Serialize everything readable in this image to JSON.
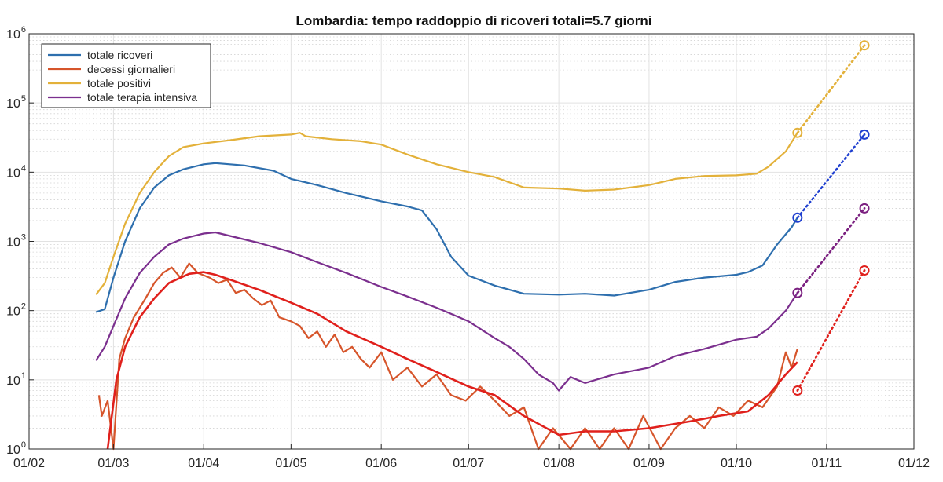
{
  "chart_data": {
    "type": "line",
    "title": "Lombardia: tempo raddoppio di ricoveri totali=5.7 giorni",
    "xlabel": "",
    "ylabel": "",
    "y_scale": "log",
    "ylim": [
      1,
      1000000
    ],
    "x_range": [
      "2020-02-01",
      "2020-12-01"
    ],
    "x_ticks": [
      "01/02",
      "01/03",
      "01/04",
      "01/05",
      "01/06",
      "01/07",
      "01/08",
      "01/09",
      "01/10",
      "01/11",
      "01/12"
    ],
    "y_ticks": [
      {
        "base": "10",
        "exp": "0"
      },
      {
        "base": "10",
        "exp": "1"
      },
      {
        "base": "10",
        "exp": "2"
      },
      {
        "base": "10",
        "exp": "3"
      },
      {
        "base": "10",
        "exp": "4"
      },
      {
        "base": "10",
        "exp": "5"
      },
      {
        "base": "10",
        "exp": "6"
      }
    ],
    "grid": true,
    "minor_grid": true,
    "legend_position": "top-left",
    "series": [
      {
        "name": "totale ricoveri",
        "color": "#2e6fae",
        "points": [
          [
            "2020-02-24",
            95
          ],
          [
            "2020-02-27",
            105
          ],
          [
            "2020-03-01",
            300
          ],
          [
            "2020-03-05",
            1000
          ],
          [
            "2020-03-10",
            3000
          ],
          [
            "2020-03-15",
            6000
          ],
          [
            "2020-03-20",
            9000
          ],
          [
            "2020-03-25",
            11000
          ],
          [
            "2020-04-01",
            13000
          ],
          [
            "2020-04-05",
            13500
          ],
          [
            "2020-04-15",
            12500
          ],
          [
            "2020-04-25",
            10500
          ],
          [
            "2020-05-01",
            8000
          ],
          [
            "2020-05-10",
            6500
          ],
          [
            "2020-05-20",
            5000
          ],
          [
            "2020-06-01",
            3800
          ],
          [
            "2020-06-10",
            3200
          ],
          [
            "2020-06-15",
            2800
          ],
          [
            "2020-06-20",
            1500
          ],
          [
            "2020-06-25",
            600
          ],
          [
            "2020-07-01",
            320
          ],
          [
            "2020-07-10",
            230
          ],
          [
            "2020-07-20",
            175
          ],
          [
            "2020-08-01",
            170
          ],
          [
            "2020-08-10",
            175
          ],
          [
            "2020-08-20",
            165
          ],
          [
            "2020-09-01",
            200
          ],
          [
            "2020-09-10",
            260
          ],
          [
            "2020-09-20",
            300
          ],
          [
            "2020-10-01",
            330
          ],
          [
            "2020-10-05",
            360
          ],
          [
            "2020-10-10",
            450
          ],
          [
            "2020-10-15",
            900
          ],
          [
            "2020-10-20",
            1600
          ],
          [
            "2020-10-22",
            2200
          ]
        ],
        "projection": {
          "start": [
            "2020-10-22",
            2200
          ],
          "end": [
            "2020-11-14",
            35000
          ]
        }
      },
      {
        "name": "decessi giornalieri",
        "color": "#d6552b",
        "smoothed_color": "#e0201c",
        "points": [
          [
            "2020-02-25",
            6
          ],
          [
            "2020-02-26",
            3
          ],
          [
            "2020-02-28",
            5
          ],
          [
            "2020-03-01",
            1
          ],
          [
            "2020-03-03",
            20
          ],
          [
            "2020-03-05",
            40
          ],
          [
            "2020-03-08",
            80
          ],
          [
            "2020-03-12",
            150
          ],
          [
            "2020-03-15",
            250
          ],
          [
            "2020-03-18",
            350
          ],
          [
            "2020-03-21",
            420
          ],
          [
            "2020-03-24",
            300
          ],
          [
            "2020-03-27",
            480
          ],
          [
            "2020-03-30",
            350
          ],
          [
            "2020-04-03",
            300
          ],
          [
            "2020-04-06",
            250
          ],
          [
            "2020-04-09",
            280
          ],
          [
            "2020-04-12",
            180
          ],
          [
            "2020-04-15",
            200
          ],
          [
            "2020-04-18",
            150
          ],
          [
            "2020-04-21",
            120
          ],
          [
            "2020-04-24",
            140
          ],
          [
            "2020-04-27",
            80
          ],
          [
            "2020-05-01",
            70
          ],
          [
            "2020-05-04",
            60
          ],
          [
            "2020-05-07",
            40
          ],
          [
            "2020-05-10",
            50
          ],
          [
            "2020-05-13",
            30
          ],
          [
            "2020-05-16",
            45
          ],
          [
            "2020-05-19",
            25
          ],
          [
            "2020-05-22",
            30
          ],
          [
            "2020-05-25",
            20
          ],
          [
            "2020-05-28",
            15
          ],
          [
            "2020-06-01",
            25
          ],
          [
            "2020-06-05",
            10
          ],
          [
            "2020-06-10",
            15
          ],
          [
            "2020-06-15",
            8
          ],
          [
            "2020-06-20",
            12
          ],
          [
            "2020-06-25",
            6
          ],
          [
            "2020-06-30",
            5
          ],
          [
            "2020-07-05",
            8
          ],
          [
            "2020-07-10",
            5
          ],
          [
            "2020-07-15",
            3
          ],
          [
            "2020-07-20",
            4
          ],
          [
            "2020-07-25",
            1
          ],
          [
            "2020-07-30",
            2
          ],
          [
            "2020-08-05",
            1
          ],
          [
            "2020-08-10",
            2
          ],
          [
            "2020-08-15",
            1
          ],
          [
            "2020-08-20",
            2
          ],
          [
            "2020-08-25",
            1
          ],
          [
            "2020-08-30",
            3
          ],
          [
            "2020-09-05",
            1
          ],
          [
            "2020-09-10",
            2
          ],
          [
            "2020-09-15",
            3
          ],
          [
            "2020-09-20",
            2
          ],
          [
            "2020-09-25",
            4
          ],
          [
            "2020-09-30",
            3
          ],
          [
            "2020-10-05",
            5
          ],
          [
            "2020-10-10",
            4
          ],
          [
            "2020-10-15",
            8
          ],
          [
            "2020-10-18",
            25
          ],
          [
            "2020-10-20",
            15
          ],
          [
            "2020-10-22",
            28
          ]
        ],
        "smoothed": [
          [
            "2020-02-28",
            1
          ],
          [
            "2020-03-02",
            10
          ],
          [
            "2020-03-05",
            30
          ],
          [
            "2020-03-10",
            80
          ],
          [
            "2020-03-15",
            150
          ],
          [
            "2020-03-20",
            250
          ],
          [
            "2020-03-27",
            340
          ],
          [
            "2020-04-01",
            360
          ],
          [
            "2020-04-05",
            330
          ],
          [
            "2020-04-10",
            280
          ],
          [
            "2020-04-20",
            200
          ],
          [
            "2020-05-01",
            130
          ],
          [
            "2020-05-10",
            90
          ],
          [
            "2020-05-20",
            50
          ],
          [
            "2020-06-01",
            30
          ],
          [
            "2020-06-10",
            20
          ],
          [
            "2020-06-20",
            13
          ],
          [
            "2020-07-01",
            8
          ],
          [
            "2020-07-10",
            6
          ],
          [
            "2020-07-20",
            3
          ],
          [
            "2020-08-01",
            1.6
          ],
          [
            "2020-08-10",
            1.8
          ],
          [
            "2020-08-20",
            1.8
          ],
          [
            "2020-09-01",
            2
          ],
          [
            "2020-09-15",
            2.5
          ],
          [
            "2020-09-25",
            3
          ],
          [
            "2020-10-05",
            3.5
          ],
          [
            "2020-10-12",
            6
          ],
          [
            "2020-10-18",
            12
          ],
          [
            "2020-10-22",
            18
          ]
        ],
        "projection": {
          "start": [
            "2020-10-22",
            7
          ],
          "end": [
            "2020-11-14",
            380
          ]
        }
      },
      {
        "name": "totale positivi",
        "color": "#e3b13a",
        "points": [
          [
            "2020-02-24",
            170
          ],
          [
            "2020-02-27",
            250
          ],
          [
            "2020-03-01",
            600
          ],
          [
            "2020-03-05",
            1800
          ],
          [
            "2020-03-10",
            5000
          ],
          [
            "2020-03-15",
            10000
          ],
          [
            "2020-03-20",
            17000
          ],
          [
            "2020-03-25",
            23000
          ],
          [
            "2020-04-01",
            26000
          ],
          [
            "2020-04-10",
            29000
          ],
          [
            "2020-04-20",
            33000
          ],
          [
            "2020-05-01",
            35000
          ],
          [
            "2020-05-04",
            37000
          ],
          [
            "2020-05-06",
            33000
          ],
          [
            "2020-05-15",
            30000
          ],
          [
            "2020-05-25",
            28000
          ],
          [
            "2020-06-01",
            25000
          ],
          [
            "2020-06-10",
            18000
          ],
          [
            "2020-06-20",
            13000
          ],
          [
            "2020-07-01",
            10000
          ],
          [
            "2020-07-10",
            8500
          ],
          [
            "2020-07-20",
            6000
          ],
          [
            "2020-08-01",
            5800
          ],
          [
            "2020-08-10",
            5400
          ],
          [
            "2020-08-20",
            5600
          ],
          [
            "2020-09-01",
            6500
          ],
          [
            "2020-09-10",
            8000
          ],
          [
            "2020-09-20",
            8800
          ],
          [
            "2020-10-01",
            9000
          ],
          [
            "2020-10-08",
            9500
          ],
          [
            "2020-10-12",
            12000
          ],
          [
            "2020-10-18",
            20000
          ],
          [
            "2020-10-22",
            37000
          ]
        ],
        "projection": {
          "start": [
            "2020-10-22",
            37000
          ],
          "end": [
            "2020-11-14",
            680000
          ]
        }
      },
      {
        "name": "totale terapia intensiva",
        "color": "#7b2f8e",
        "points": [
          [
            "2020-02-24",
            19
          ],
          [
            "2020-02-27",
            30
          ],
          [
            "2020-03-01",
            60
          ],
          [
            "2020-03-05",
            150
          ],
          [
            "2020-03-10",
            350
          ],
          [
            "2020-03-15",
            600
          ],
          [
            "2020-03-20",
            900
          ],
          [
            "2020-03-25",
            1100
          ],
          [
            "2020-04-01",
            1300
          ],
          [
            "2020-04-05",
            1350
          ],
          [
            "2020-04-10",
            1200
          ],
          [
            "2020-04-20",
            950
          ],
          [
            "2020-05-01",
            700
          ],
          [
            "2020-05-10",
            500
          ],
          [
            "2020-05-20",
            350
          ],
          [
            "2020-06-01",
            220
          ],
          [
            "2020-06-10",
            160
          ],
          [
            "2020-06-20",
            110
          ],
          [
            "2020-07-01",
            70
          ],
          [
            "2020-07-10",
            40
          ],
          [
            "2020-07-15",
            30
          ],
          [
            "2020-07-20",
            20
          ],
          [
            "2020-07-25",
            12
          ],
          [
            "2020-07-30",
            9
          ],
          [
            "2020-08-01",
            7
          ],
          [
            "2020-08-05",
            11
          ],
          [
            "2020-08-10",
            9
          ],
          [
            "2020-08-20",
            12
          ],
          [
            "2020-09-01",
            15
          ],
          [
            "2020-09-10",
            22
          ],
          [
            "2020-09-20",
            28
          ],
          [
            "2020-10-01",
            38
          ],
          [
            "2020-10-08",
            42
          ],
          [
            "2020-10-12",
            55
          ],
          [
            "2020-10-18",
            100
          ],
          [
            "2020-10-22",
            180
          ]
        ],
        "projection": {
          "start": [
            "2020-10-22",
            180
          ],
          "end": [
            "2020-11-14",
            3000
          ]
        }
      }
    ]
  }
}
